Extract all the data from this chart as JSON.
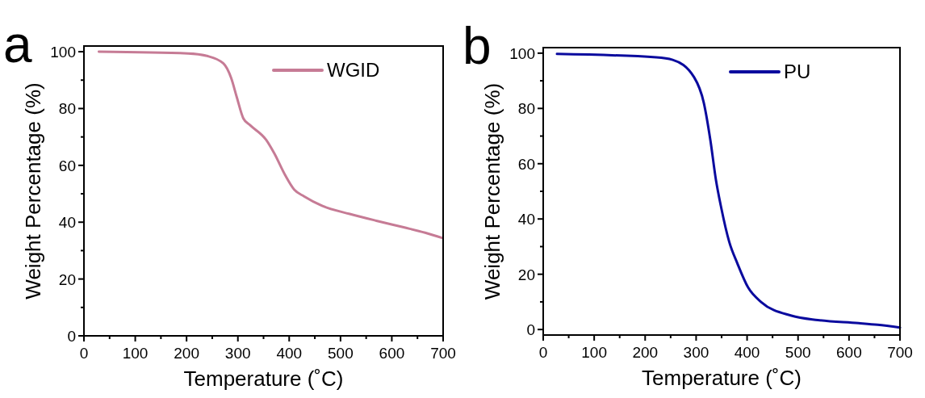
{
  "chart_data": [
    {
      "type": "line",
      "annotations": [
        "a"
      ],
      "xlabel": "Temperature (˚C)",
      "ylabel": "Weight Percentage (%)",
      "xlim": [
        0,
        700
      ],
      "ylim": [
        0,
        102
      ],
      "xticks": [
        0,
        {
          "value": 50,
          "label": null
        },
        100,
        {
          "value": 150,
          "label": null
        },
        200,
        {
          "value": 250,
          "label": null
        },
        300,
        {
          "value": 350,
          "label": null
        },
        400,
        {
          "value": 450,
          "label": null
        },
        500,
        {
          "value": 550,
          "label": null
        },
        600,
        {
          "value": 650,
          "label": null
        },
        700
      ],
      "yticks": [
        0,
        {
          "value": 10,
          "label": null
        },
        20,
        {
          "value": 30,
          "label": null
        },
        40,
        {
          "value": 50,
          "label": null
        },
        60,
        {
          "value": 70,
          "label": null
        },
        80,
        {
          "value": 90,
          "label": null
        },
        100
      ],
      "legend": "top right",
      "grid": false,
      "series": [
        {
          "name": "WGID",
          "color": "#c67b95",
          "x": [
            29,
            203,
            240,
            271.5,
            287,
            297.7,
            310.7,
            324,
            355,
            371,
            392,
            410,
            429,
            465,
            518,
            570,
            623,
            665,
            699
          ],
          "values": [
            100,
            99.4,
            98.5,
            95.9,
            90.7,
            84.1,
            76.5,
            74.1,
            69,
            64.2,
            56.6,
            51.4,
            49.1,
            45.7,
            42.9,
            40.5,
            38.2,
            36.3,
            34.4
          ]
        }
      ]
    },
    {
      "type": "line",
      "annotations": [
        "b"
      ],
      "xlabel": "Temperature (˚C)",
      "ylabel": "Weight Percentage (%)",
      "xlim": [
        0,
        700
      ],
      "ylim": [
        -2,
        102
      ],
      "xticks": [
        0,
        {
          "value": 50,
          "label": null
        },
        100,
        {
          "value": 150,
          "label": null
        },
        200,
        {
          "value": 250,
          "label": null
        },
        300,
        {
          "value": 350,
          "label": null
        },
        400,
        {
          "value": 450,
          "label": null
        },
        500,
        {
          "value": 550,
          "label": null
        },
        600,
        {
          "value": 650,
          "label": null
        },
        700
      ],
      "yticks": [
        0,
        {
          "value": 10,
          "label": null
        },
        20,
        {
          "value": 30,
          "label": null
        },
        40,
        {
          "value": 50,
          "label": null
        },
        60,
        {
          "value": 70,
          "label": null
        },
        80,
        {
          "value": 90,
          "label": null
        },
        100
      ],
      "legend": "top right",
      "grid": false,
      "series": [
        {
          "name": "PU",
          "color": "#0a0a9e",
          "x": [
            27,
            222,
            254,
            296,
            315,
            328,
            339,
            349,
            365,
            381,
            402,
            428,
            487,
            539,
            619,
            656,
            700
          ],
          "values": [
            99.7,
            98.5,
            97.6,
            91.3,
            82.1,
            68.5,
            54,
            44.3,
            31.7,
            23.9,
            15.2,
            9.9,
            5,
            3.4,
            2.3,
            1.7,
            0.7
          ]
        }
      ]
    }
  ]
}
